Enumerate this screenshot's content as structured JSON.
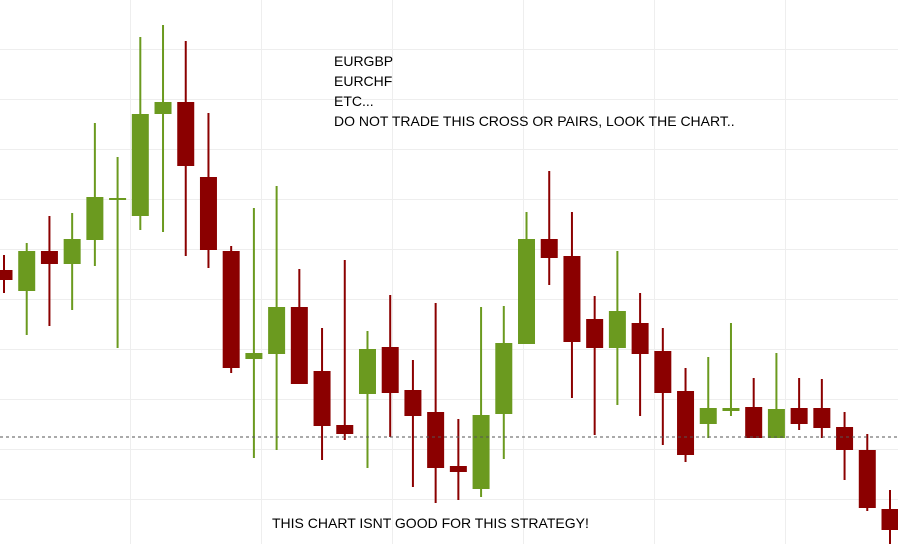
{
  "chart_data": {
    "type": "candlestick",
    "annotations": [
      "EURGBP",
      "EURCHF",
      "ETC...",
      "DO NOT TRADE THIS CROSS OR PAIRS, LOOK THE CHART.."
    ],
    "caption": "THIS CHART ISNT GOOD FOR THIS STRATEGY!",
    "open": [
      274,
      253,
      293,
      280,
      304,
      344,
      328,
      430,
      442,
      367,
      293,
      185,
      190,
      237,
      173,
      119,
      150,
      197,
      154,
      132,
      78,
      55,
      130,
      200,
      305,
      288,
      225,
      196,
      221,
      193,
      153,
      120,
      133,
      137,
      106,
      136,
      136,
      117,
      94,
      35
    ],
    "high": [
      289,
      301,
      328,
      331,
      421,
      387,
      507,
      519,
      503,
      431,
      298,
      336,
      358,
      275,
      216,
      284,
      213,
      249,
      184,
      241,
      125,
      237,
      238,
      332,
      373,
      332,
      248,
      293,
      251,
      216,
      176,
      187,
      221,
      166,
      191,
      166,
      165,
      132,
      110,
      54
    ],
    "low": [
      251,
      209,
      218,
      234,
      278,
      196,
      314,
      312,
      288,
      276,
      171,
      86,
      94,
      160,
      84,
      104,
      76,
      107,
      57,
      41,
      44,
      47,
      85,
      200,
      259,
      146,
      109,
      139,
      128,
      99,
      82,
      106,
      128,
      106,
      106,
      114,
      106,
      64,
      33,
      0
    ],
    "close": [
      264,
      293,
      280,
      305,
      347,
      346,
      430,
      442,
      378,
      294,
      176,
      191,
      237,
      160,
      118,
      110,
      195,
      151,
      128,
      76,
      72,
      129,
      201,
      305,
      286,
      202,
      196,
      233,
      190,
      151,
      89,
      136,
      136,
      106,
      135,
      120,
      116,
      94,
      36,
      14
    ],
    "up_color": "#6b9a1f",
    "down_color": "#8b0000",
    "level": 107,
    "level_color": "#555555",
    "ylim": [
      0,
      544
    ]
  }
}
